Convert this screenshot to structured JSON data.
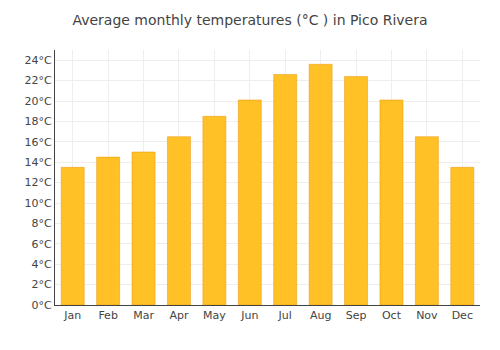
{
  "chart_data": {
    "type": "bar",
    "title": "Average monthly temperatures (°C ) in Pico Rivera",
    "categories": [
      "Jan",
      "Feb",
      "Mar",
      "Apr",
      "May",
      "Jun",
      "Jul",
      "Aug",
      "Sep",
      "Oct",
      "Nov",
      "Dec"
    ],
    "values": [
      13.5,
      14.5,
      15.0,
      16.5,
      18.5,
      20.1,
      22.6,
      23.6,
      22.4,
      20.1,
      16.5,
      13.5
    ],
    "color": "#FFC125",
    "ylim": [
      0,
      25
    ],
    "yticks": [
      {
        "value": 0,
        "label": "0°C"
      },
      {
        "value": 2,
        "label": "2°C"
      },
      {
        "value": 4,
        "label": "4°C"
      },
      {
        "value": 6,
        "label": "6°C"
      },
      {
        "value": 8,
        "label": "8°C"
      },
      {
        "value": 10,
        "label": "10°C"
      },
      {
        "value": 12,
        "label": "12°C"
      },
      {
        "value": 14,
        "label": "14°C"
      },
      {
        "value": 16,
        "label": "16°C"
      },
      {
        "value": 18,
        "label": "18°C"
      },
      {
        "value": 20,
        "label": "20°C"
      },
      {
        "value": 22,
        "label": "22°C"
      },
      {
        "value": 24,
        "label": "24°C"
      }
    ],
    "grid": true
  }
}
